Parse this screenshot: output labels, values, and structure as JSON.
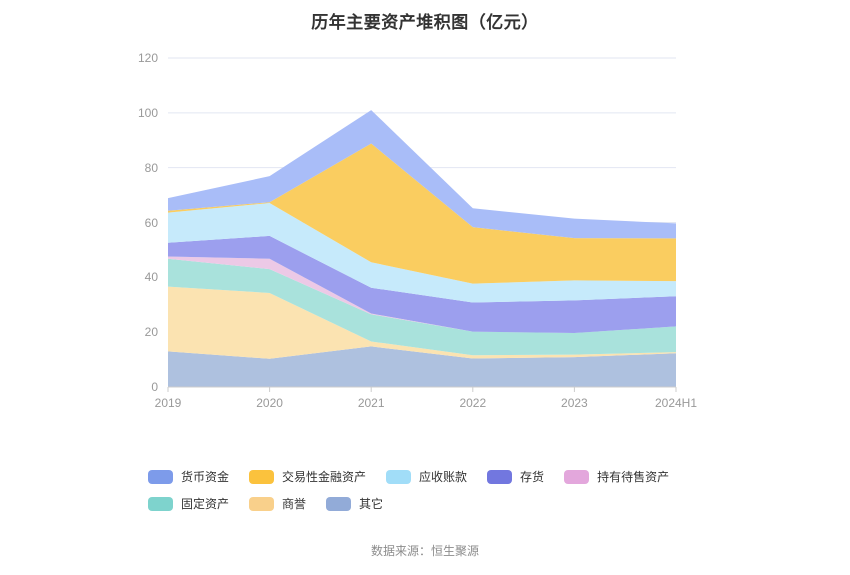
{
  "title": "历年主要资产堆积图（亿元）",
  "source": "数据来源：恒生聚源",
  "colors": {
    "title_text": "#333333",
    "axis_label": "#999999",
    "grid_line": "#e2e6f2",
    "axis_line": "#cccccc",
    "legend_text": "#333333",
    "source_text": "#8c8c8c",
    "background": "#ffffff"
  },
  "chart_data": {
    "type": "area",
    "stacked": true,
    "title": "历年主要资产堆积图（亿元）",
    "xlabel": "",
    "ylabel": "",
    "categories": [
      "2019",
      "2020",
      "2021",
      "2022",
      "2023",
      "2024H1"
    ],
    "ylim": [
      0,
      120
    ],
    "yticks": [
      0,
      20,
      40,
      60,
      80,
      100,
      120
    ],
    "grid": true,
    "legend_position": "bottom",
    "series": [
      {
        "id": "others",
        "name": "其它",
        "legend_color": "#92abd8",
        "area_color": "#aec1df",
        "values": [
          13.0,
          10.3,
          14.8,
          10.4,
          10.9,
          12.3
        ]
      },
      {
        "id": "goodwill",
        "name": "商誉",
        "legend_color": "#f9d08b",
        "area_color": "#fbe3b1",
        "values": [
          23.6,
          24.0,
          1.8,
          1.2,
          0.9,
          0.4
        ]
      },
      {
        "id": "fixed-assets",
        "name": "固定资产",
        "legend_color": "#7ed3cd",
        "area_color": "#a9e2dc",
        "values": [
          10.2,
          8.7,
          9.9,
          8.6,
          7.9,
          9.4
        ]
      },
      {
        "id": "assets-held-for-sale",
        "name": "持有待售资产",
        "legend_color": "#e3a7dc",
        "area_color": "#ecc9e6",
        "values": [
          0.8,
          3.8,
          0.3,
          0.0,
          0.0,
          0.0
        ]
      },
      {
        "id": "inventory",
        "name": "存货",
        "legend_color": "#7277df",
        "area_color": "#9c9fee",
        "values": [
          5.0,
          8.3,
          9.4,
          10.6,
          11.9,
          11.0
        ]
      },
      {
        "id": "accounts-receivable",
        "name": "应收账款",
        "legend_color": "#a1ddf8",
        "area_color": "#c6eafb",
        "values": [
          11.0,
          12.0,
          9.3,
          6.9,
          7.3,
          5.5
        ]
      },
      {
        "id": "trading-financial-assets",
        "name": "交易性金融资产",
        "legend_color": "#fbc23d",
        "area_color": "#facd60",
        "values": [
          0.7,
          0.3,
          43.3,
          20.6,
          15.4,
          15.6
        ]
      },
      {
        "id": "monetary-funds",
        "name": "货币资金",
        "legend_color": "#7d9bea",
        "area_color": "#a9bdf8",
        "values": [
          4.6,
          9.5,
          12.2,
          6.9,
          7.1,
          5.5
        ]
      }
    ]
  }
}
